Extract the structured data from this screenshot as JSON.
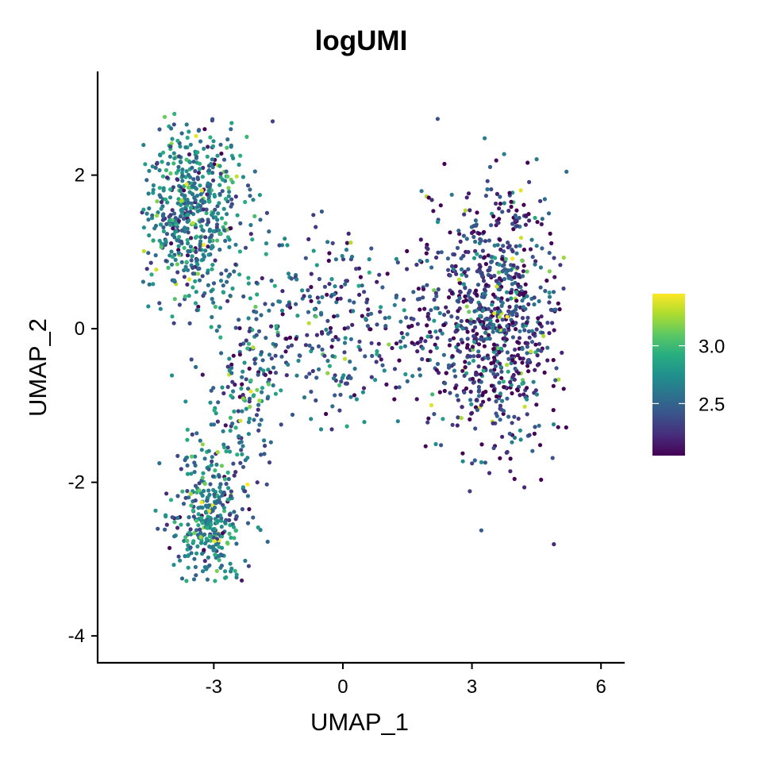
{
  "chart_data": {
    "type": "scatter",
    "title": "logUMI",
    "xlabel": "UMAP_1",
    "ylabel": "UMAP_2",
    "xlim": [
      -5.7,
      6.55
    ],
    "ylim": [
      -4.35,
      3.35
    ],
    "x_ticks": [
      -3,
      0,
      3,
      6
    ],
    "y_ticks": [
      -4,
      -2,
      0,
      2
    ],
    "x_tick_labels": [
      "-3",
      "0",
      "3",
      "6"
    ],
    "y_tick_labels": [
      "-4",
      "-2",
      "0",
      "2"
    ],
    "grid": false,
    "legend": {
      "placement": "right",
      "type": "continuous colorbar",
      "palette": "viridis",
      "range": [
        2.05,
        3.45
      ],
      "tick_values": [
        2.5,
        3.0
      ],
      "tick_labels": [
        "2.5",
        "3.0"
      ]
    },
    "colors": [
      "#440154",
      "#472d7b",
      "#3b528b",
      "#2c728e",
      "#21918c",
      "#28ae80",
      "#5ec962",
      "#addc30",
      "#fde725"
    ],
    "clusters": [
      {
        "cx": -3.5,
        "cy": 1.55,
        "sx": 0.62,
        "sy": 0.6,
        "count": 560,
        "color_mean": 2.62
      },
      {
        "cx": -3.1,
        "cy": -2.45,
        "sx": 0.45,
        "sy": 0.5,
        "count": 330,
        "color_mean": 2.62
      },
      {
        "cx": 3.5,
        "cy": 0.1,
        "sx": 0.85,
        "sy": 0.85,
        "count": 900,
        "color_mean": 2.32
      },
      {
        "cx": -0.3,
        "cy": 0.0,
        "sx": 1.1,
        "sy": 0.65,
        "count": 300,
        "color_mean": 2.42
      },
      {
        "cx": -2.3,
        "cy": -0.9,
        "sx": 0.55,
        "sy": 0.75,
        "count": 170,
        "color_mean": 2.55
      }
    ],
    "point_count": 2260
  }
}
